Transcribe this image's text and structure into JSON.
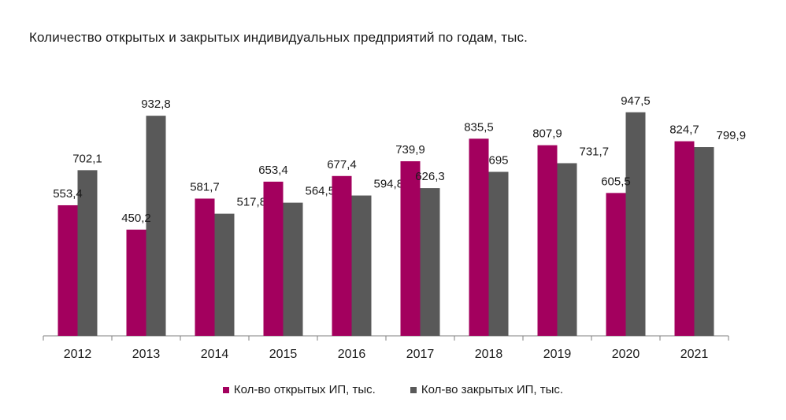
{
  "title": "Количество открытых и закрытых индивидуальных предприятий по годам, тыс.",
  "colors": {
    "opened": "#A3005E",
    "closed": "#595959",
    "axis": "#7f7f7f"
  },
  "chart_data": {
    "type": "bar",
    "title": "Количество открытых и закрытых индивидуальных предприятий по годам, тыс.",
    "categories": [
      "2012",
      "2013",
      "2014",
      "2015",
      "2016",
      "2017",
      "2018",
      "2019",
      "2020",
      "2021"
    ],
    "series": [
      {
        "name": "Кол-во открытых ИП, тыс.",
        "values": [
          553.4,
          450.2,
          581.7,
          653.4,
          677.4,
          739.9,
          835.5,
          807.9,
          605.5,
          824.7
        ],
        "labels": [
          "553,4",
          "450,2",
          "581,7",
          "653,4",
          "677,4",
          "739,9",
          "835,5",
          "807,9",
          "605,5",
          "824,7"
        ]
      },
      {
        "name": "Кол-во закрытых ИП, тыс.",
        "values": [
          702.1,
          932.8,
          517.8,
          564.5,
          594.8,
          626.3,
          695,
          731.7,
          947.5,
          799.9
        ],
        "labels": [
          "702,1",
          "932,8",
          "517,8",
          "564,5",
          "594,8",
          "626,3",
          "695",
          "731,7",
          "947,5",
          "799,9"
        ]
      }
    ],
    "xlabel": "",
    "ylabel": "",
    "ylim": [
      0,
      1000
    ],
    "grid": false,
    "legend": "bottom"
  }
}
